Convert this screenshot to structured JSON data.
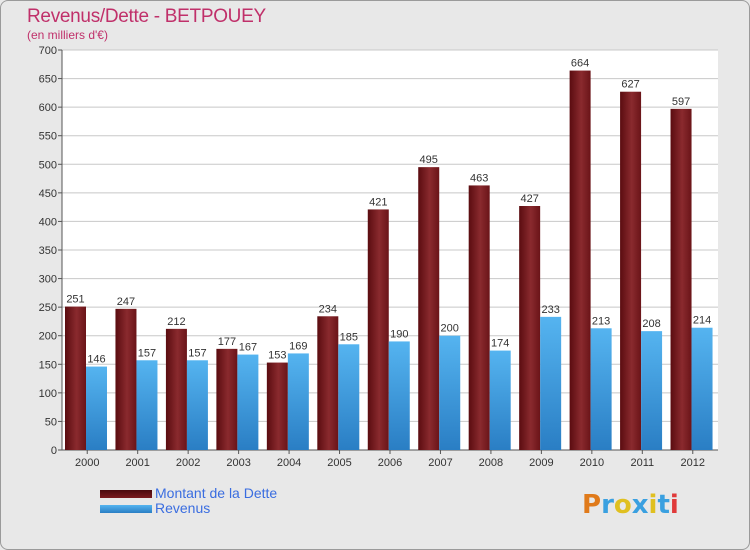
{
  "header": {
    "title": "Revenus/Dette - BETPOUEY",
    "subtitle": "(en milliers d'€)"
  },
  "brand": {
    "text": "Proxiti",
    "colors": [
      "#e07a1a",
      "#3aa0e0",
      "#e0c020",
      "#3aa0e0",
      "#e0c020",
      "#3aa0e0",
      "#e03a3a"
    ]
  },
  "chart_data": {
    "type": "bar",
    "categories": [
      "2000",
      "2001",
      "2002",
      "2003",
      "2004",
      "2005",
      "2006",
      "2007",
      "2008",
      "2009",
      "2010",
      "2011",
      "2012"
    ],
    "series": [
      {
        "name": "Montant de la Dette",
        "color": "#7a1a1e",
        "values": [
          251,
          247,
          212,
          177,
          153,
          234,
          421,
          495,
          463,
          427,
          664,
          627,
          597
        ]
      },
      {
        "name": "Revenus",
        "color": "#3a9ce0",
        "values": [
          146,
          157,
          157,
          167,
          169,
          185,
          190,
          200,
          174,
          233,
          213,
          208,
          214
        ]
      }
    ],
    "title": "Revenus/Dette - BETPOUEY",
    "ylabel": "(en milliers d'€)",
    "ylim": [
      0,
      700
    ],
    "ytick_step": 50,
    "grid": true,
    "legend": "bottom-left"
  }
}
